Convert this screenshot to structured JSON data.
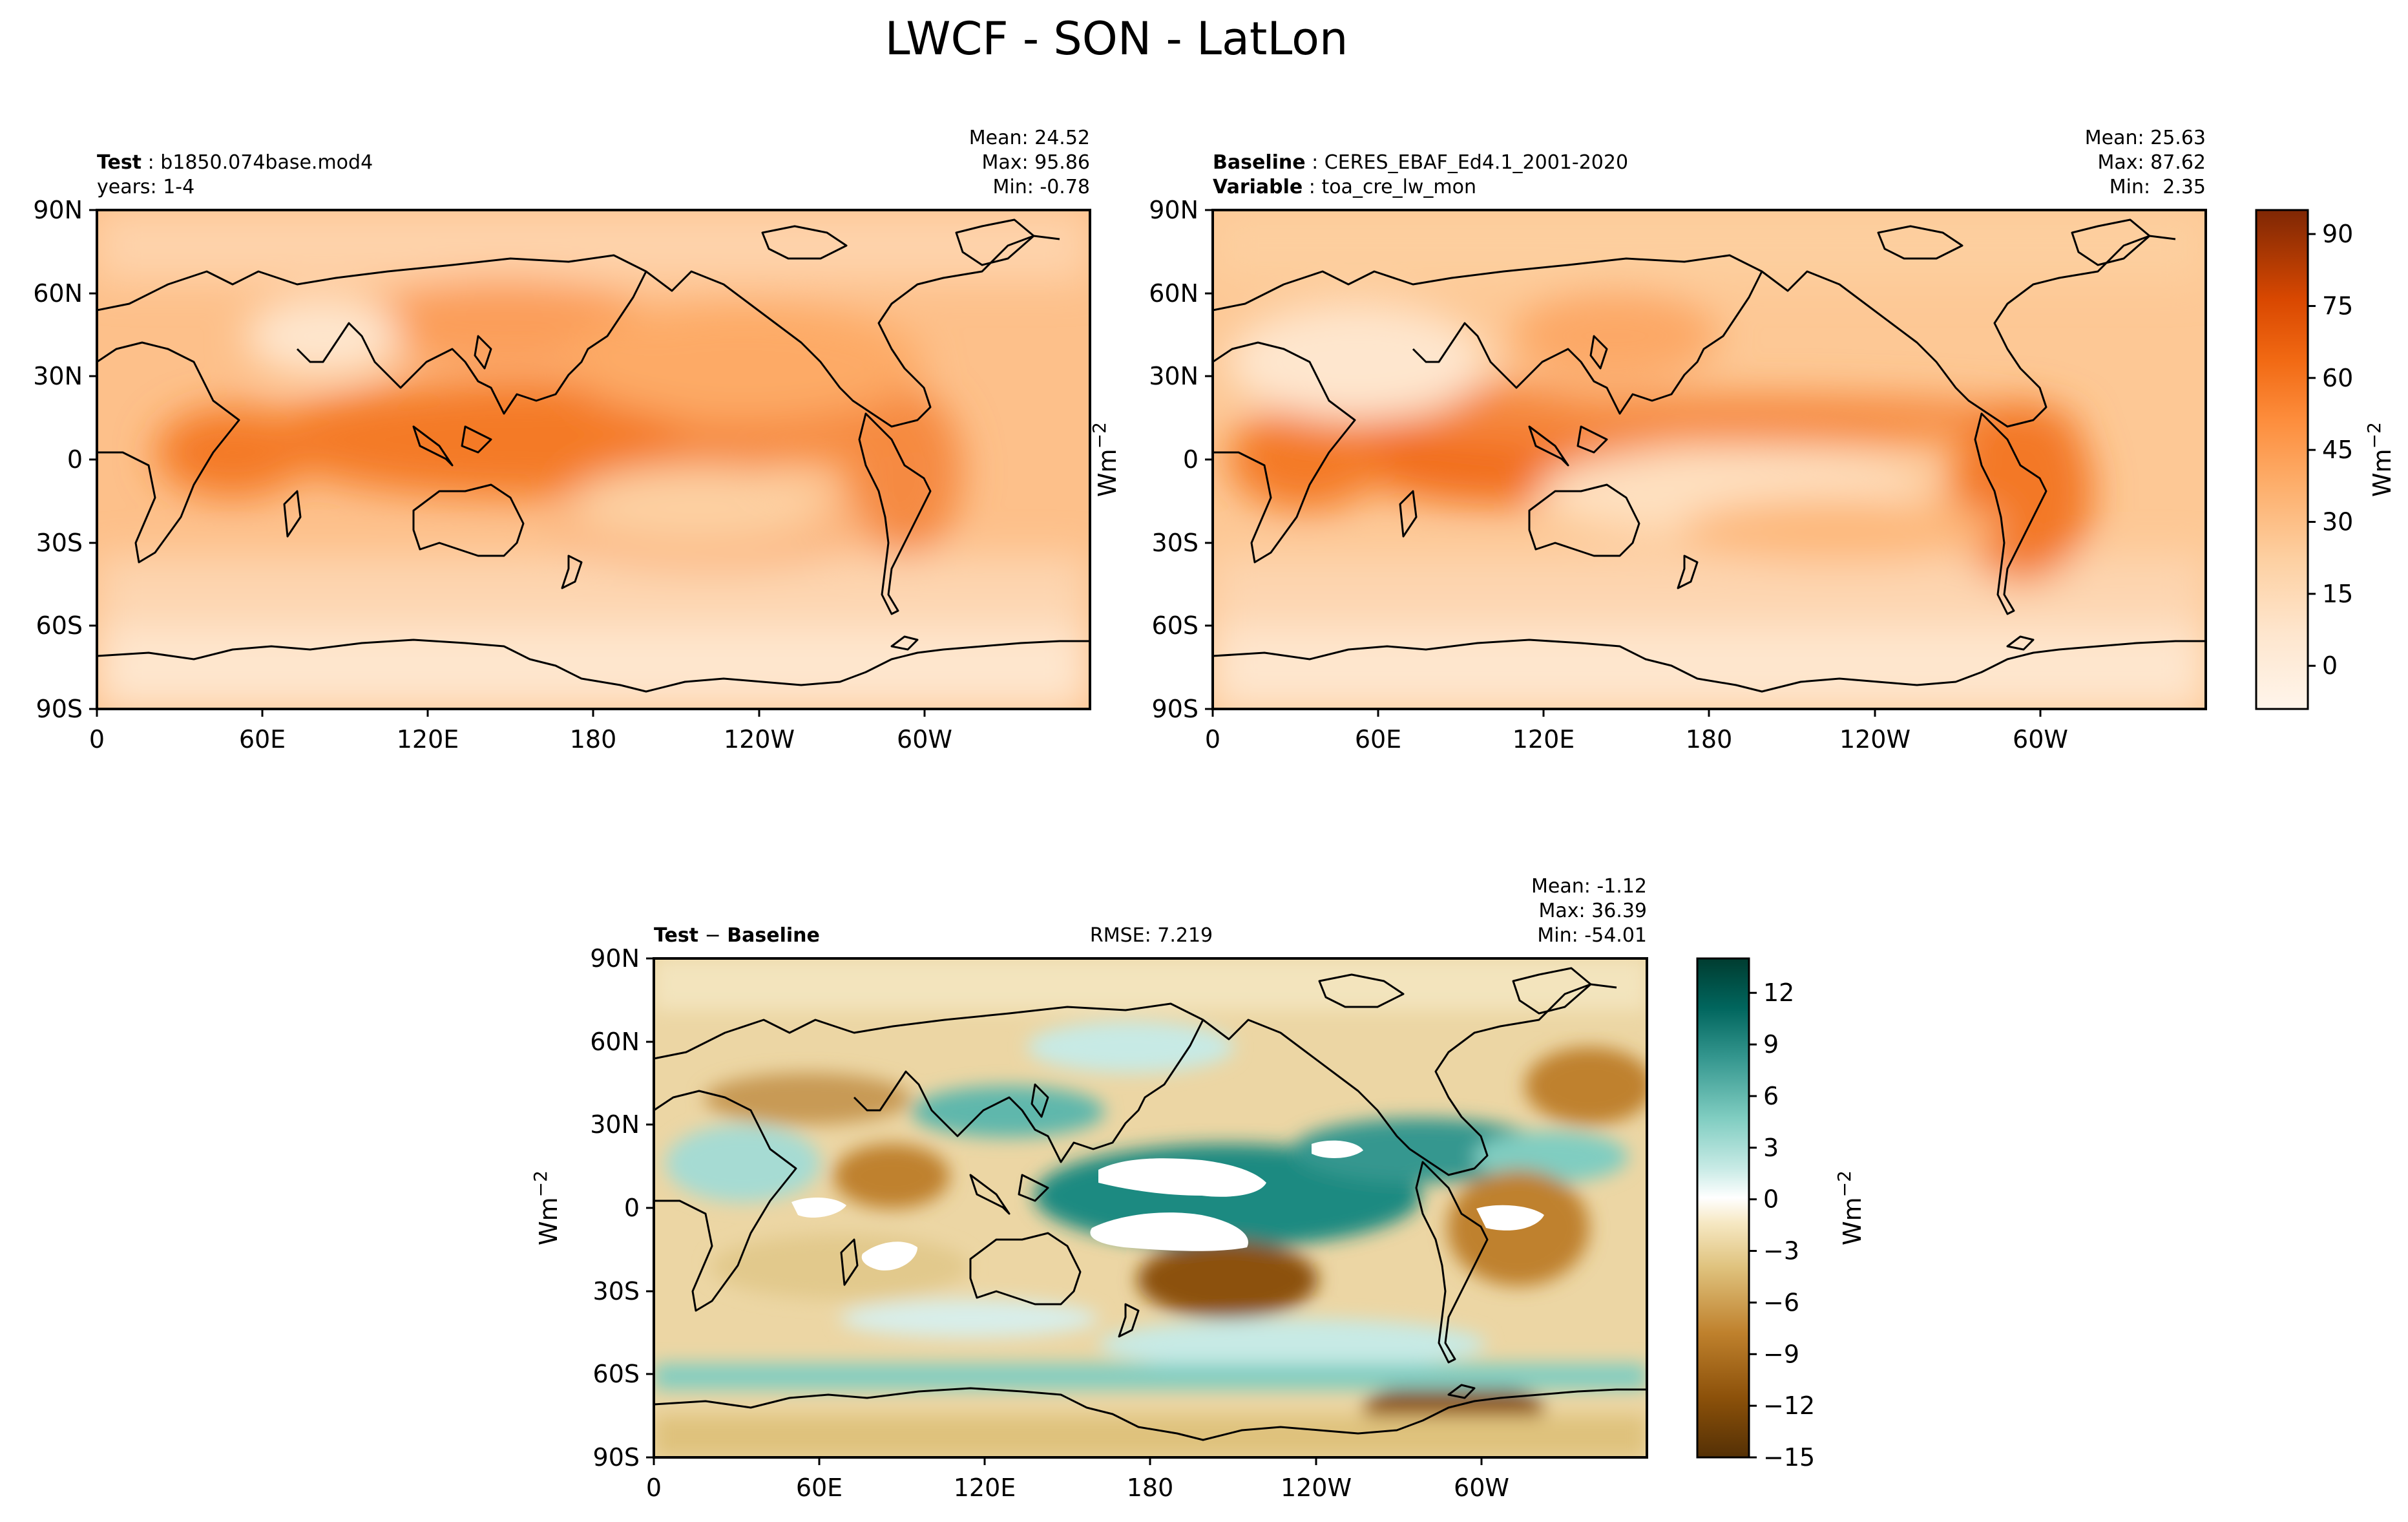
{
  "figure_title": "LWCF - SON - LatLon",
  "units": "Wm",
  "units_exp": "−2",
  "panels": {
    "test": {
      "label_bold": "Test",
      "label_value": "b1850.074base.mod4",
      "line2": "years: 1-4",
      "stats": [
        "Mean: 24.52",
        "Max: 95.86",
        "Min: -0.78"
      ]
    },
    "baseline": {
      "label_bold": "Baseline",
      "label_value": "CERES_EBAF_Ed4.1_2001-2020",
      "line2_bold": "Variable",
      "line2_value": "toa_cre_lw_mon",
      "stats": [
        "Mean: 25.63",
        "Max: 87.62",
        "Min:  2.35"
      ]
    },
    "diff": {
      "label_bold_a": "Test",
      "label_sep": " − ",
      "label_bold_b": "Baseline",
      "rmse": "RMSE: 7.219",
      "stats": [
        "Mean: -1.12",
        "Max: 36.39",
        "Min: -54.01"
      ]
    }
  },
  "colors": {
    "oranges": [
      "#fff5eb",
      "#fee6ce",
      "#fdd0a2",
      "#fdae6b",
      "#fd8d3c",
      "#f16913",
      "#d94801",
      "#a63603",
      "#7f2704"
    ],
    "brbg": [
      "#543005",
      "#8c510a",
      "#bf812d",
      "#dfc27d",
      "#f6e8c3",
      "#ffffff",
      "#c7eae5",
      "#80cdc1",
      "#35978f",
      "#01665e",
      "#003c30"
    ]
  },
  "chart_data": [
    {
      "type": "heatmap",
      "title": "Test",
      "variable": "LWCF",
      "projection": "PlateCarree",
      "x_ticks": [
        "0",
        "60E",
        "120E",
        "180",
        "120W",
        "60W"
      ],
      "y_ticks": [
        "90N",
        "60N",
        "30N",
        "0",
        "30S",
        "60S",
        "90S"
      ],
      "xlim": [
        0,
        360
      ],
      "ylim": [
        -90,
        90
      ],
      "stats": {
        "mean": 24.52,
        "max": 95.86,
        "min": -0.78
      }
    },
    {
      "type": "heatmap",
      "title": "Baseline",
      "variable": "toa_cre_lw_mon",
      "projection": "PlateCarree",
      "x_ticks": [
        "0",
        "60E",
        "120E",
        "180",
        "120W",
        "60W"
      ],
      "y_ticks": [
        "90N",
        "60N",
        "30N",
        "0",
        "30S",
        "60S",
        "90S"
      ],
      "xlim": [
        0,
        360
      ],
      "ylim": [
        -90,
        90
      ],
      "stats": {
        "mean": 25.63,
        "max": 87.62,
        "min": 2.35
      },
      "colorbar": {
        "ticks": [
          "0",
          "15",
          "30",
          "45",
          "60",
          "75",
          "90"
        ],
        "range": [
          -9,
          95
        ],
        "cmap": "Oranges",
        "label": "Wm−2"
      }
    },
    {
      "type": "heatmap",
      "title": "Test − Baseline",
      "projection": "PlateCarree",
      "x_ticks": [
        "0",
        "60E",
        "120E",
        "180",
        "120W",
        "60W"
      ],
      "y_ticks": [
        "90N",
        "60N",
        "30N",
        "0",
        "30S",
        "60S",
        "90S"
      ],
      "xlim": [
        0,
        360
      ],
      "ylim": [
        -90,
        90
      ],
      "stats": {
        "mean": -1.12,
        "max": 36.39,
        "min": -54.01,
        "rmse": 7.219
      },
      "colorbar": {
        "ticks": [
          "12",
          "9",
          "6",
          "3",
          "0",
          "−3",
          "−6",
          "−9",
          "−12",
          "−15"
        ],
        "range": [
          -15,
          14
        ],
        "cmap": "BrBG",
        "label": "Wm−2"
      }
    }
  ]
}
